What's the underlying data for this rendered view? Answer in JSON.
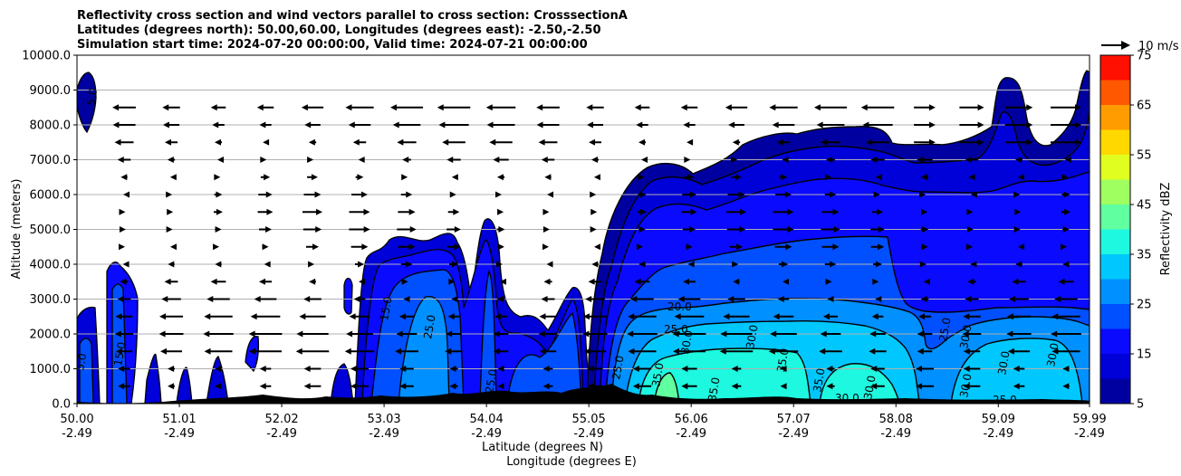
{
  "chart_data": {
    "type": "heatmap",
    "title_lines": [
      "Reflectivity cross section and wind vectors parallel to cross section: CrosssectionA",
      "Latitudes (degrees north): 50.00,60.00, Longitudes (degrees east): -2.50,-2.50",
      "Simulation start time: 2024-07-20 00:00:00, Valid time: 2024-07-21 00:00:00"
    ],
    "ylabel": "Altitude (meters)",
    "xlabel_lat": "Latitude (degrees N)",
    "xlabel_lon": "Longitude (degrees E)",
    "ylim": [
      0,
      10000
    ],
    "xlim": [
      50.0,
      59.99
    ],
    "y_ticks": [
      "0.0",
      "1000.0",
      "2000.0",
      "3000.0",
      "4000.0",
      "5000.0",
      "6000.0",
      "7000.0",
      "8000.0",
      "9000.0",
      "10000.0"
    ],
    "x_ticks": [
      {
        "lat": "50.00",
        "lon": "-2.49",
        "v": 50.0
      },
      {
        "lat": "51.01",
        "lon": "-2.49",
        "v": 51.01
      },
      {
        "lat": "52.02",
        "lon": "-2.49",
        "v": 52.02
      },
      {
        "lat": "53.03",
        "lon": "-2.49",
        "v": 53.03
      },
      {
        "lat": "54.04",
        "lon": "-2.49",
        "v": 54.04
      },
      {
        "lat": "55.05",
        "lon": "-2.49",
        "v": 55.05
      },
      {
        "lat": "56.06",
        "lon": "-2.49",
        "v": 56.06
      },
      {
        "lat": "57.07",
        "lon": "-2.49",
        "v": 57.07
      },
      {
        "lat": "58.08",
        "lon": "-2.49",
        "v": 58.08
      },
      {
        "lat": "59.09",
        "lon": "-2.49",
        "v": 59.09
      },
      {
        "lat": "59.99",
        "lon": "-2.49",
        "v": 59.99
      }
    ],
    "grid": "horizontal",
    "colorbar": {
      "label": "Reflectivity dBZ",
      "levels": [
        5,
        10,
        15,
        20,
        25,
        30,
        35,
        40,
        45,
        50,
        55,
        60,
        65,
        70,
        75
      ],
      "tick_labels": [
        "5",
        "15",
        "25",
        "35",
        "45",
        "55",
        "65",
        "75"
      ],
      "colors": [
        "#0000a0",
        "#0000d8",
        "#0a0aff",
        "#0050ff",
        "#0090ff",
        "#00c8ff",
        "#1ef8e0",
        "#60ffa0",
        "#a0ff60",
        "#e0ff20",
        "#ffd800",
        "#ff9c00",
        "#ff5800",
        "#ff1000",
        "#a80000"
      ]
    },
    "legend": {
      "reference_vector": "10 m/s",
      "position": "top-right"
    },
    "contour_labels": [
      "5.0",
      "10.0",
      "15.0",
      "20.0",
      "25.0",
      "30.0",
      "35.0"
    ]
  },
  "colors": {
    "terrain": "#000000",
    "grid": "#b0b0b0",
    "vector": "#000000"
  }
}
